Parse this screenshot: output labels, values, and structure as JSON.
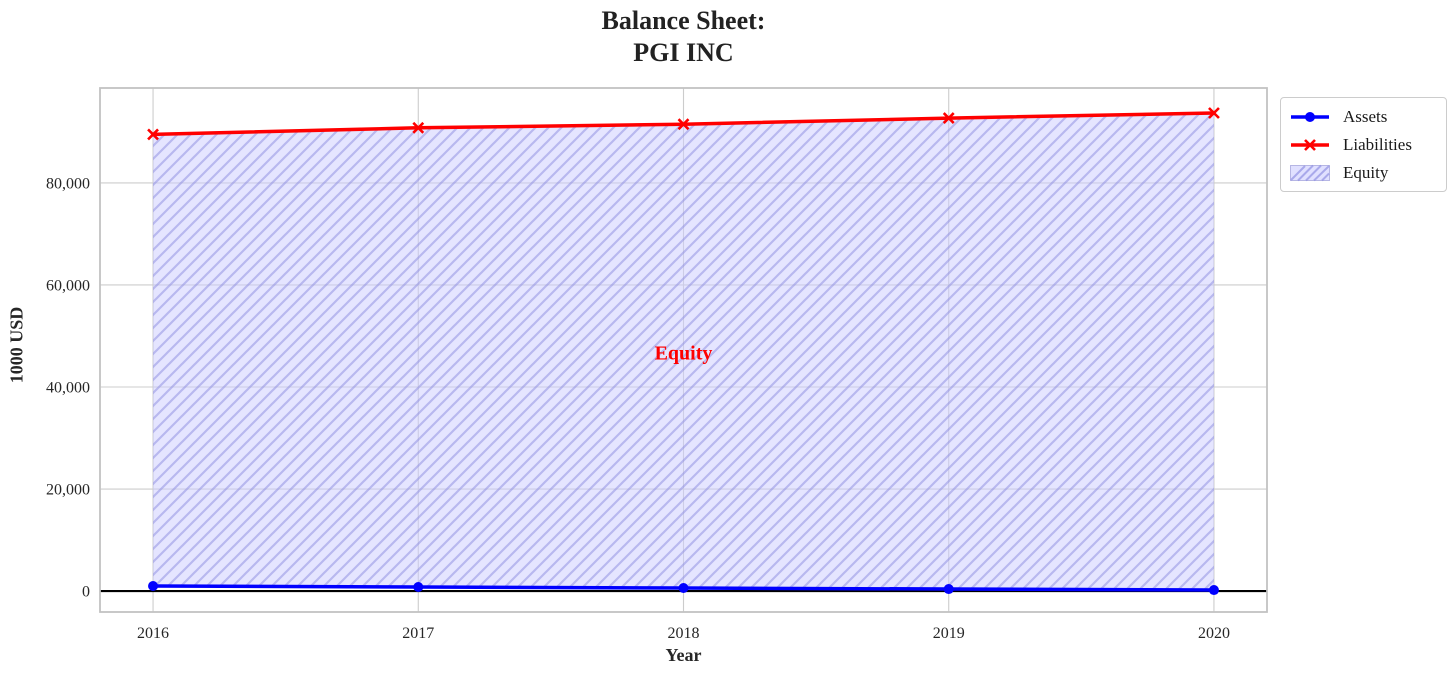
{
  "figure": {
    "title_line1": "Balance Sheet:",
    "title_line2": "PGI INC",
    "xlabel": "Year",
    "ylabel": "1000 USD"
  },
  "legend": {
    "items": [
      {
        "label": "Assets"
      },
      {
        "label": "Liabilities"
      },
      {
        "label": "Equity"
      }
    ]
  },
  "chart_data": {
    "type": "line",
    "title": "Balance Sheet: PGI INC",
    "xlabel": "Year",
    "ylabel": "1000 USD",
    "x": [
      2016,
      2017,
      2018,
      2019,
      2020
    ],
    "series": [
      {
        "name": "Assets",
        "values": [
          1000,
          800,
          600,
          400,
          200
        ],
        "color": "#0000ff",
        "marker": "circle"
      },
      {
        "name": "Liabilities",
        "values": [
          89500,
          90800,
          91500,
          92700,
          93700
        ],
        "color": "#ff0000",
        "marker": "x"
      }
    ],
    "area_between": {
      "label": "Equity",
      "from": "Assets",
      "to": "Liabilities"
    },
    "annotation": {
      "text": "Equity",
      "x": 2018,
      "y": 46500,
      "color": "#ff0000"
    },
    "xticks": [
      2016,
      2017,
      2018,
      2019,
      2020
    ],
    "yticks": [
      0,
      20000,
      40000,
      60000,
      80000
    ],
    "ytick_labels": [
      "0",
      "20,000",
      "40,000",
      "60,000",
      "80,000"
    ],
    "xlim": [
      2015.8,
      2020.2
    ],
    "ylim": [
      -4100,
      98600
    ],
    "grid": true,
    "zero_line": true,
    "legend_position": "outside-upper-right",
    "style": {
      "grid_color": "#cccccc",
      "spine_color": "#c2c2c2",
      "zero_line_color": "#000000",
      "equity_face": "#ccccff",
      "equity_face_opacity": 0.5,
      "equity_hatch": "#8c8ce0",
      "tick_color": "#262626",
      "title_color": "#222222",
      "background": "#ffffff"
    }
  }
}
